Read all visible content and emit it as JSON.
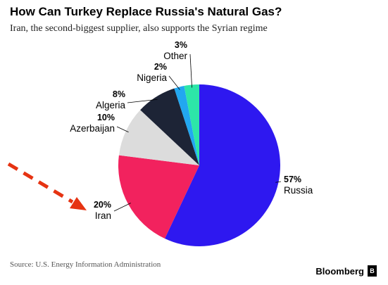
{
  "header": {
    "title": "How Can Turkey Replace Russia's Natural Gas?",
    "subtitle": "Iran, the second-biggest supplier, also supports the Syrian regime"
  },
  "footer": {
    "source": "Source: U.S. Energy Information Administration",
    "brand": "Bloomberg",
    "brand_mark": "B"
  },
  "colors": {
    "arrow": "#e63312",
    "leader": "#000000"
  },
  "chart_data": {
    "type": "pie",
    "title": "How Can Turkey Replace Russia's Natural Gas?",
    "subtitle": "Iran, the second-biggest supplier, also supports the Syrian regime",
    "start": "12 o'clock",
    "direction": "clockwise",
    "slices": [
      {
        "label": "Russia",
        "value": 57,
        "value_label": "57%",
        "color": "#2e18f0"
      },
      {
        "label": "Iran",
        "value": 20,
        "value_label": "20%",
        "color": "#f2225e"
      },
      {
        "label": "Azerbaijan",
        "value": 10,
        "value_label": "10%",
        "color": "#dcdcdc"
      },
      {
        "label": "Algeria",
        "value": 8,
        "value_label": "8%",
        "color": "#1d2436"
      },
      {
        "label": "Nigeria",
        "value": 2,
        "value_label": "2%",
        "color": "#22a7f0"
      },
      {
        "label": "Other",
        "value": 3,
        "value_label": "3%",
        "color": "#2de6a8"
      }
    ],
    "annotation": "red dashed arrow pointing at Iran"
  }
}
